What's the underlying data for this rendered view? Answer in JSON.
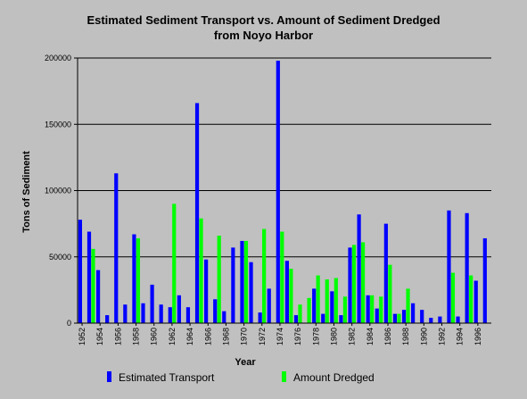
{
  "chart_data": {
    "type": "bar",
    "title_line1": "Estimated Sediment Transport vs. Amount of Sediment Dredged",
    "title_line2": "from Noyo Harbor",
    "xlabel": "Year",
    "ylabel": "Tons of Sediment",
    "ylim": [
      0,
      200000
    ],
    "yticks": [
      0,
      50000,
      100000,
      150000,
      200000
    ],
    "grid": true,
    "legend_position": "bottom",
    "categories": [
      "1952",
      "1953",
      "1954",
      "1955",
      "1956",
      "1957",
      "1958",
      "1959",
      "1960",
      "1961",
      "1962",
      "1963",
      "1964",
      "1965",
      "1966",
      "1967",
      "1968",
      "1969",
      "1970",
      "1971",
      "1972",
      "1973",
      "1974",
      "1975",
      "1976",
      "1977",
      "1978",
      "1979",
      "1980",
      "1981",
      "1982",
      "1983",
      "1984",
      "1985",
      "1986",
      "1987",
      "1988",
      "1989",
      "1990",
      "1991",
      "1992",
      "1993",
      "1994",
      "1995",
      "1996",
      "1997"
    ],
    "tick_labels": [
      "1952",
      "1954",
      "1956",
      "1958",
      "1960",
      "1962",
      "1964",
      "1966",
      "1968",
      "1970",
      "1972",
      "1974",
      "1976",
      "1978",
      "1980",
      "1982",
      "1984",
      "1986",
      "1988",
      "1990",
      "1992",
      "1994",
      "1996"
    ],
    "series": [
      {
        "name": "Estimated Transport",
        "color": "#0000ff",
        "values": [
          78000,
          69000,
          40000,
          6000,
          113000,
          14000,
          67000,
          15000,
          29000,
          14000,
          12000,
          21000,
          12000,
          166000,
          48000,
          18000,
          9000,
          57000,
          62000,
          46000,
          8000,
          26000,
          198000,
          47000,
          6000,
          0,
          26000,
          7000,
          24000,
          6000,
          57000,
          82000,
          21000,
          11000,
          75000,
          7000,
          10000,
          15000,
          10000,
          4000,
          5000,
          85000,
          5000,
          83000,
          32000,
          64000
        ]
      },
      {
        "name": "Amount Dredged",
        "color": "#00ff00",
        "values": [
          0,
          56000,
          0,
          0,
          0,
          0,
          64000,
          0,
          0,
          0,
          90000,
          0,
          0,
          79000,
          0,
          66000,
          0,
          0,
          62000,
          0,
          71000,
          0,
          69000,
          41000,
          14000,
          19000,
          36000,
          33000,
          34000,
          20000,
          59000,
          61000,
          21000,
          20000,
          44000,
          7000,
          26000,
          0,
          0,
          0,
          0,
          38000,
          0,
          36000,
          0,
          0
        ]
      }
    ]
  }
}
